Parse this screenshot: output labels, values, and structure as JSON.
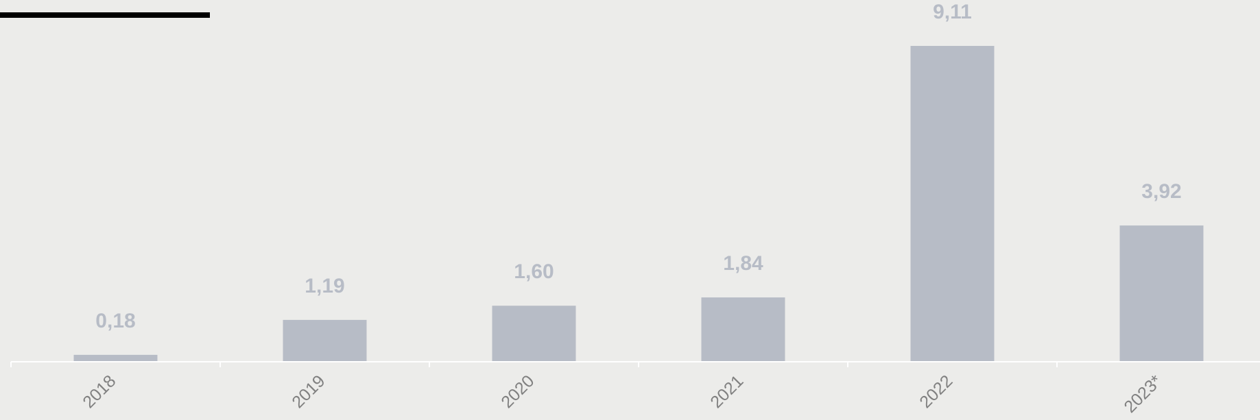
{
  "colors": {
    "background": "#ececea",
    "bar": "#b7bcc6",
    "value_label": "#b7bcc6",
    "axis": "#ffffff",
    "tick_label": "#808080",
    "title_rule": "#000000"
  },
  "chart_data": {
    "type": "bar",
    "categories": [
      "2018",
      "2019",
      "2020",
      "2021",
      "2022",
      "2023*"
    ],
    "values": [
      0.18,
      1.19,
      1.6,
      1.84,
      9.11,
      3.92
    ],
    "value_labels": [
      "0,18",
      "1,19",
      "1,60",
      "1,84",
      "9,11",
      "3,92"
    ],
    "title": "",
    "xlabel": "",
    "ylabel": "",
    "ylim": [
      0,
      9.11
    ],
    "grid": false,
    "legend": "none"
  }
}
